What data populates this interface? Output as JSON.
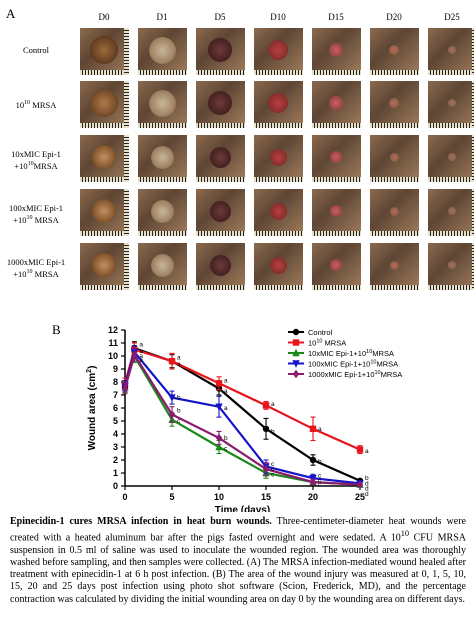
{
  "panelA": {
    "letter": "A",
    "days": [
      "D0",
      "D1",
      "D5",
      "D10",
      "D15",
      "D20",
      "D25"
    ],
    "rows": [
      {
        "label_parts": [
          "Control"
        ]
      },
      {
        "label_parts": [
          "10",
          "10",
          " MRSA"
        ]
      },
      {
        "label_parts": [
          "10xMIC Epi-1",
          "+10",
          "10",
          "MRSA"
        ]
      },
      {
        "label_parts": [
          "100xMIC Epi-1",
          "+10",
          "10",
          " MRSA"
        ]
      },
      {
        "label_parts": [
          "1000xMIC Epi-1",
          "+10",
          "10",
          " MRSA"
        ]
      }
    ]
  },
  "panelB": {
    "letter": "B"
  },
  "chart_data": {
    "type": "line",
    "xlabel": "Time (days)",
    "ylabel_parts": [
      "Wound area (cm",
      "2",
      ")"
    ],
    "xlim": [
      0,
      25
    ],
    "ylim": [
      0,
      12
    ],
    "xticks": [
      0,
      5,
      10,
      15,
      20,
      25
    ],
    "yticks": [
      0,
      1,
      2,
      3,
      4,
      5,
      6,
      7,
      8,
      9,
      10,
      11,
      12
    ],
    "x": [
      0,
      1,
      5,
      10,
      15,
      20,
      25
    ],
    "legend_position": "top-right",
    "series": [
      {
        "name_parts": [
          "Control"
        ],
        "color": "#000000",
        "marker": "circle",
        "values": [
          7.6,
          10.6,
          9.6,
          7.5,
          4.4,
          2.0,
          0.4
        ],
        "errors": [
          0.4,
          0.5,
          0.5,
          0.5,
          0.8,
          0.4,
          0.1
        ]
      },
      {
        "name_parts": [
          "10",
          "10",
          " MRSA"
        ],
        "color": "#e8141c",
        "marker": "square",
        "values": [
          7.9,
          10.5,
          9.6,
          7.9,
          6.2,
          4.4,
          2.8
        ],
        "errors": [
          0.4,
          0.5,
          0.6,
          0.5,
          0.3,
          0.9,
          0.3
        ]
      },
      {
        "name_parts": [
          "10xMIC Epi-1+10",
          "10",
          "MRSA"
        ],
        "color": "#1a8a1a",
        "marker": "triangle-up",
        "values": [
          7.6,
          10.0,
          5.1,
          3.0,
          1.0,
          0.3,
          0.1
        ],
        "errors": [
          0.4,
          0.5,
          0.5,
          0.5,
          0.4,
          0.2,
          0.1
        ]
      },
      {
        "name_parts": [
          "100xMIC Epi-1+10",
          "10",
          "MRSA"
        ],
        "color": "#1414c8",
        "marker": "triangle-down",
        "values": [
          7.7,
          10.3,
          6.8,
          6.1,
          1.5,
          0.6,
          0.2
        ],
        "errors": [
          0.4,
          0.5,
          0.5,
          0.8,
          0.5,
          0.3,
          0.1
        ]
      },
      {
        "name_parts": [
          "1000xMIC Epi-1+10",
          "10",
          "MRSA"
        ],
        "color": "#8c1a6e",
        "marker": "diamond",
        "values": [
          7.5,
          10.1,
          5.5,
          3.7,
          1.3,
          0.3,
          0.1
        ],
        "errors": [
          0.4,
          0.5,
          0.6,
          0.5,
          0.5,
          0.2,
          0.1
        ]
      }
    ],
    "annotations": [
      {
        "x": 1,
        "y": 10.9,
        "text": "a"
      },
      {
        "x": 1,
        "y": 10.4,
        "text": "a"
      },
      {
        "x": 1,
        "y": 10.0,
        "text": "a"
      },
      {
        "x": 1,
        "y": 9.7,
        "text": "a"
      },
      {
        "x": 5,
        "y": 9.9,
        "text": "a"
      },
      {
        "x": 5,
        "y": 9.4,
        "text": "a"
      },
      {
        "x": 5,
        "y": 6.8,
        "text": "b"
      },
      {
        "x": 5,
        "y": 5.8,
        "text": "b"
      },
      {
        "x": 5,
        "y": 5.0,
        "text": "c"
      },
      {
        "x": 10,
        "y": 8.1,
        "text": "a"
      },
      {
        "x": 10,
        "y": 7.3,
        "text": "a"
      },
      {
        "x": 10,
        "y": 6.0,
        "text": "a"
      },
      {
        "x": 10,
        "y": 3.7,
        "text": "b"
      },
      {
        "x": 10,
        "y": 2.9,
        "text": "c"
      },
      {
        "x": 15,
        "y": 6.3,
        "text": "a"
      },
      {
        "x": 15,
        "y": 4.2,
        "text": "b"
      },
      {
        "x": 15,
        "y": 1.7,
        "text": "c"
      },
      {
        "x": 15,
        "y": 1.3,
        "text": "c"
      },
      {
        "x": 15,
        "y": 0.9,
        "text": "c"
      },
      {
        "x": 20,
        "y": 4.4,
        "text": "a"
      },
      {
        "x": 20,
        "y": 1.9,
        "text": "b"
      },
      {
        "x": 20,
        "y": 0.8,
        "text": "c"
      },
      {
        "x": 20,
        "y": 0.45,
        "text": "c"
      },
      {
        "x": 20,
        "y": 0.1,
        "text": "c"
      },
      {
        "x": 25,
        "y": 2.7,
        "text": "a"
      },
      {
        "x": 25,
        "y": 0.6,
        "text": "b"
      },
      {
        "x": 25,
        "y": 0.2,
        "text": "d"
      },
      {
        "x": 25,
        "y": -0.2,
        "text": "d"
      },
      {
        "x": 25,
        "y": -0.6,
        "text": "d"
      }
    ]
  },
  "caption": {
    "title": "Epinecidin-1 cures MRSA infection in heat burn wounds.",
    "part1": " Three-centimeter-diameter heat wounds were created with a heated aluminum bar after the pigs fasted overnight and were sedated. A 10",
    "sup": "10",
    "part2": " CFU MRSA suspension in 0.5 ml of saline was used to inoculate the wounded region. The wounded area was thoroughly washed before sampling, and then samples were collected. (A) The MRSA infection-mediated wound healed after treatment with epinecidin-1 at 6 h post infection. (B) The area of the wound injury was measured at 0, 1, 5, 10, 15, 20 and 25 days post infection using photo shot software (Scion, Frederick, MD), and the percentage contraction was calculated by dividing the initial wounding area on day 0 by the wounding area on different days."
  }
}
